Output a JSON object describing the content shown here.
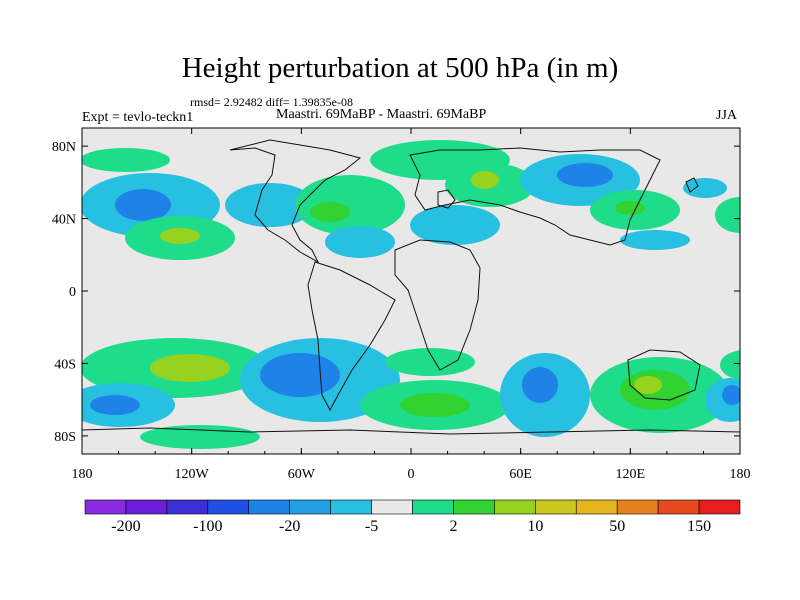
{
  "title": "Height perturbation at 500 hPa (in m)",
  "stats": "rmsd= 2.92482  diff= 1.39835e-08",
  "left_label": "Expt = tevlo-teckn1",
  "center_label": "Maastri.  69MaBP - Maastri.  69MaBP",
  "right_label": "JJA",
  "lat_ticks": [
    {
      "label": "80N",
      "lat": 80
    },
    {
      "label": "40N",
      "lat": 40
    },
    {
      "label": "0",
      "lat": 0
    },
    {
      "label": "40S",
      "lat": -40
    },
    {
      "label": "80S",
      "lat": -80
    }
  ],
  "lon_ticks": [
    {
      "label": "180",
      "lon": -180
    },
    {
      "label": "120W",
      "lon": -120
    },
    {
      "label": "60W",
      "lon": -60
    },
    {
      "label": "0",
      "lon": 0
    },
    {
      "label": "60E",
      "lon": 60
    },
    {
      "label": "120E",
      "lon": 120
    },
    {
      "label": "180",
      "lon": 180
    }
  ],
  "colorbar": {
    "colors": [
      "#8a2be2",
      "#6a1fd6",
      "#3c2fd6",
      "#1e50e6",
      "#1e82e6",
      "#22a0e6",
      "#28c0e0",
      "#e8e8e8",
      "#1edc8a",
      "#32d232",
      "#96d21e",
      "#c8c81e",
      "#e6b41e",
      "#e6821e",
      "#e64a1e",
      "#e61e1e"
    ],
    "labels": [
      "-200",
      "-100",
      "-20",
      "-5",
      "2",
      "10",
      "50",
      "150"
    ]
  },
  "colors": {
    "neutral": "#e8e8e8",
    "green": "#38d26a",
    "cyan": "#28c0e0",
    "blue": "#1e82e6",
    "lime": "#9ad21e"
  }
}
